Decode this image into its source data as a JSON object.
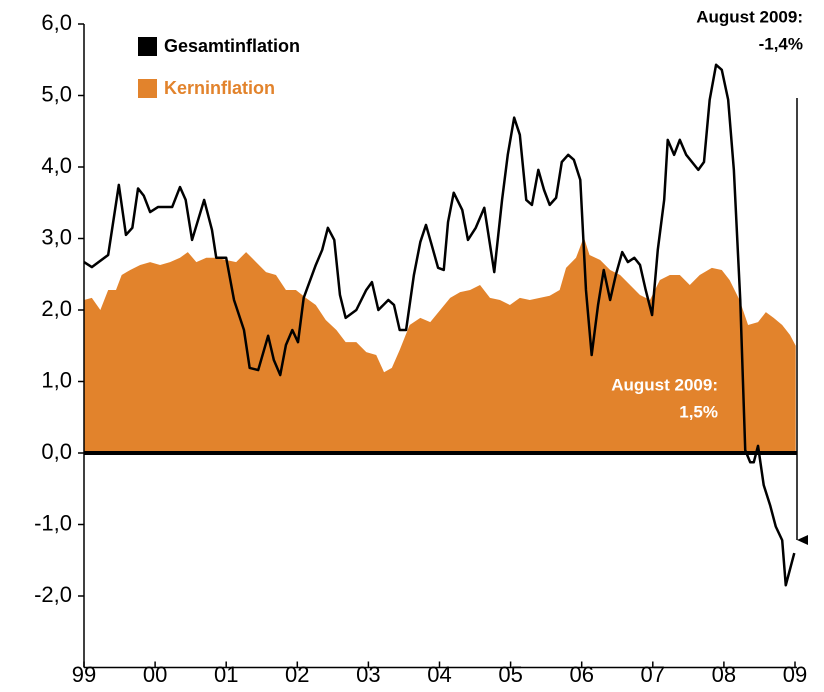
{
  "chart_data": {
    "type": "line",
    "xlim": [
      1999,
      2009
    ],
    "ylim": [
      -3,
      6
    ],
    "xticks": [
      {
        "value": 1999,
        "label": "99"
      },
      {
        "value": 2000,
        "label": "00"
      },
      {
        "value": 2001,
        "label": "01"
      },
      {
        "value": 2002,
        "label": "02"
      },
      {
        "value": 2003,
        "label": "03"
      },
      {
        "value": 2004,
        "label": "04"
      },
      {
        "value": 2005,
        "label": "05"
      },
      {
        "value": 2006,
        "label": "06"
      },
      {
        "value": 2007,
        "label": "07"
      },
      {
        "value": 2008,
        "label": "08"
      },
      {
        "value": 2009,
        "label": "09"
      }
    ],
    "yticks": [
      {
        "value": -2,
        "label": "-2,0"
      },
      {
        "value": -1,
        "label": "-1,0"
      },
      {
        "value": 0,
        "label": "0,0"
      },
      {
        "value": 1,
        "label": "1,0"
      },
      {
        "value": 2,
        "label": "2,0"
      },
      {
        "value": 3,
        "label": "3,0"
      },
      {
        "value": 4,
        "label": "4,0"
      },
      {
        "value": 5,
        "label": "5,0"
      },
      {
        "value": 6,
        "label": "6,0"
      }
    ],
    "grid": false,
    "legend": "top-left",
    "annotations": [
      {
        "lines": [
          "August 2009:",
          "-1,4%"
        ],
        "color": "#000000"
      },
      {
        "lines": [
          "August 2009:",
          "1,5%"
        ],
        "color": "#ffffff"
      }
    ],
    "series": [
      {
        "name": "Kerninflation",
        "color": "#e2832c",
        "style": "area",
        "x": [
          1999.0,
          1999.11,
          1999.23,
          1999.34,
          1999.45,
          1999.53,
          1999.65,
          1999.79,
          1999.93,
          2000.07,
          2000.21,
          2000.35,
          2000.46,
          2000.58,
          2000.72,
          2000.86,
          2001.0,
          2001.14,
          2001.28,
          2001.42,
          2001.56,
          2001.7,
          2001.84,
          2001.98,
          2002.12,
          2002.26,
          2002.4,
          2002.55,
          2002.68,
          2002.83,
          2002.97,
          2003.11,
          2003.22,
          2003.33,
          2003.44,
          2003.58,
          2003.73,
          2003.87,
          2004.01,
          2004.15,
          2004.29,
          2004.43,
          2004.57,
          2004.71,
          2004.85,
          2004.99,
          2005.13,
          2005.27,
          2005.41,
          2005.55,
          2005.69,
          2005.78,
          2005.92,
          2006.03,
          2006.11,
          2006.26,
          2006.4,
          2006.54,
          2006.68,
          2006.82,
          2006.96,
          2007.1,
          2007.24,
          2007.38,
          2007.52,
          2007.66,
          2007.83,
          2007.97,
          2008.08,
          2008.22,
          2008.34,
          2008.48,
          2008.59,
          2008.7,
          2008.82,
          2008.93,
          2009.01
        ],
        "values": [
          2.14,
          2.17,
          2.0,
          2.28,
          2.28,
          2.49,
          2.56,
          2.63,
          2.67,
          2.63,
          2.67,
          2.73,
          2.81,
          2.67,
          2.73,
          2.73,
          2.7,
          2.67,
          2.81,
          2.67,
          2.53,
          2.49,
          2.28,
          2.28,
          2.17,
          2.07,
          1.86,
          1.72,
          1.55,
          1.55,
          1.41,
          1.37,
          1.13,
          1.19,
          1.44,
          1.79,
          1.89,
          1.83,
          2.0,
          2.17,
          2.25,
          2.28,
          2.35,
          2.17,
          2.14,
          2.07,
          2.17,
          2.14,
          2.17,
          2.2,
          2.28,
          2.59,
          2.73,
          3.02,
          2.77,
          2.7,
          2.56,
          2.49,
          2.35,
          2.21,
          2.14,
          2.42,
          2.49,
          2.49,
          2.35,
          2.49,
          2.59,
          2.56,
          2.42,
          2.14,
          1.79,
          1.83,
          1.97,
          1.89,
          1.79,
          1.65,
          1.5
        ]
      },
      {
        "name": "Gesamtinflation",
        "color": "#000000",
        "style": "line",
        "x": [
          1999.0,
          1999.11,
          1999.34,
          1999.49,
          1999.59,
          1999.68,
          1999.76,
          1999.84,
          1999.93,
          2000.04,
          2000.24,
          2000.35,
          2000.43,
          2000.52,
          2000.69,
          2000.8,
          2000.86,
          2001.0,
          2001.11,
          2001.25,
          2001.33,
          2001.45,
          2001.59,
          2001.67,
          2001.76,
          2001.84,
          2001.93,
          2002.01,
          2002.09,
          2002.26,
          2002.35,
          2002.43,
          2002.52,
          2002.6,
          2002.68,
          2002.83,
          2002.97,
          2003.05,
          2003.14,
          2003.28,
          2003.36,
          2003.44,
          2003.53,
          2003.64,
          2003.73,
          2003.81,
          2003.89,
          2003.98,
          2004.06,
          2004.12,
          2004.2,
          2004.32,
          2004.4,
          2004.51,
          2004.63,
          2004.77,
          2004.88,
          2004.96,
          2005.05,
          2005.13,
          2005.22,
          2005.3,
          2005.39,
          2005.47,
          2005.55,
          2005.64,
          2005.72,
          2005.81,
          2005.89,
          2005.98,
          2006.06,
          2006.14,
          2006.23,
          2006.31,
          2006.4,
          2006.48,
          2006.57,
          2006.65,
          2006.74,
          2006.82,
          2006.9,
          2006.99,
          2007.07,
          2007.16,
          2007.21,
          2007.3,
          2007.38,
          2007.47,
          2007.64,
          2007.72,
          2007.8,
          2007.89,
          2007.97,
          2008.06,
          2008.14,
          2008.23,
          2008.3,
          2008.37,
          2008.42,
          2008.48,
          2008.56,
          2008.65,
          2008.73,
          2008.82,
          2008.87,
          2008.99
        ],
        "values": [
          2.67,
          2.6,
          2.77,
          3.75,
          3.05,
          3.15,
          3.7,
          3.6,
          3.37,
          3.44,
          3.44,
          3.72,
          3.54,
          2.98,
          3.54,
          3.12,
          2.73,
          2.73,
          2.14,
          1.72,
          1.19,
          1.16,
          1.64,
          1.3,
          1.09,
          1.51,
          1.72,
          1.55,
          2.17,
          2.63,
          2.84,
          3.15,
          2.98,
          2.21,
          1.89,
          2.0,
          2.28,
          2.39,
          2.0,
          2.14,
          2.07,
          1.72,
          1.72,
          2.49,
          2.95,
          3.19,
          2.91,
          2.59,
          2.56,
          3.23,
          3.64,
          3.4,
          2.98,
          3.15,
          3.43,
          2.53,
          3.54,
          4.17,
          4.69,
          4.45,
          3.54,
          3.47,
          3.96,
          3.68,
          3.47,
          3.57,
          4.07,
          4.17,
          4.1,
          3.82,
          2.28,
          1.37,
          2.07,
          2.56,
          2.14,
          2.49,
          2.81,
          2.67,
          2.73,
          2.63,
          2.28,
          1.93,
          2.84,
          3.54,
          4.38,
          4.17,
          4.38,
          4.17,
          3.96,
          4.07,
          4.94,
          5.43,
          5.36,
          4.94,
          3.96,
          2.14,
          0.04,
          -0.13,
          -0.13,
          0.1,
          -0.45,
          -0.73,
          -1.03,
          -1.22,
          -1.85,
          -1.4
        ]
      }
    ]
  }
}
